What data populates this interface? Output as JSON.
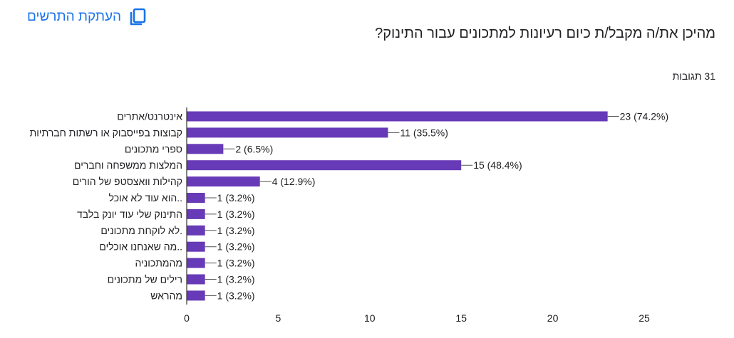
{
  "header": {
    "copy_label": "העתקת התרשים",
    "copy_icon": "copy-icon"
  },
  "question": {
    "title": "מהיכן את/ה מקבל/ת כיום רעיונות למתכונים עבור התינוק?",
    "responses": "31 תגובות"
  },
  "colors": {
    "bar": "#673ab7",
    "accent": "#1a73e8",
    "axis": "#333333",
    "text": "#202124"
  },
  "chart_data": {
    "type": "bar",
    "orientation": "horizontal",
    "categories": [
      "אינטרנט/אתרים",
      "קבוצות בפייסבוק או רשתות חברתיות",
      "ספרי מתכונים",
      "המלצות ממשפחה וחברים",
      "קהילות וואצסטפ של הורים",
      "..הוא עוד לא אוכל",
      "התינוק שלי עוד יונק בלבד",
      ".לא לוקחת מתכונים",
      "..מה שאנחנו אוכלים",
      "מהמתכוניה",
      "רילים של מתכונים",
      "מהראש"
    ],
    "values": [
      23,
      11,
      2,
      15,
      4,
      1,
      1,
      1,
      1,
      1,
      1,
      1
    ],
    "data_labels": [
      "23 (74.2%)",
      "11 (35.5%)",
      "2 (6.5%)",
      "15 (48.4%)",
      "4 (12.9%)",
      "1 (3.2%)",
      "1 (3.2%)",
      "1 (3.2%)",
      "1 (3.2%)",
      "1 (3.2%)",
      "1 (3.2%)",
      "1 (3.2%)"
    ],
    "xlim": [
      0,
      25
    ],
    "xticks": [
      0,
      5,
      10,
      15,
      20,
      25
    ],
    "grid": false
  }
}
